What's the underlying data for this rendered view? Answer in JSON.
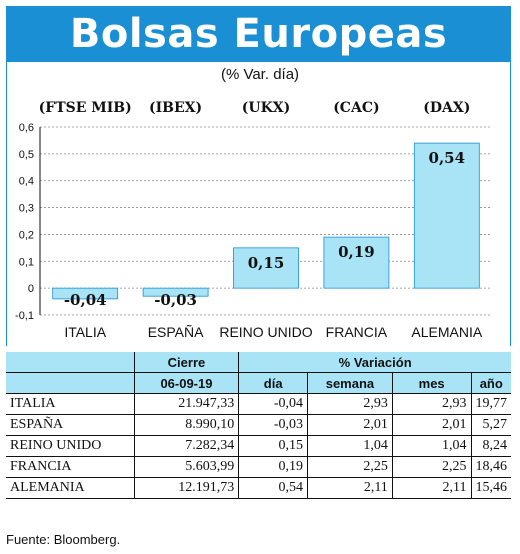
{
  "header": {
    "title": "Bolsas Europeas",
    "subtitle": "(% Var. día)"
  },
  "chart_data": {
    "type": "bar",
    "indices": [
      "(FTSE MIB)",
      "(IBEX)",
      "(UKX)",
      "(CAC)",
      "(DAX)"
    ],
    "categories": [
      "ITALIA",
      "ESPAÑA",
      "REINO UNIDO",
      "FRANCIA",
      "ALEMANIA"
    ],
    "values": [
      -0.04,
      -0.03,
      0.15,
      0.19,
      0.54
    ],
    "value_labels": [
      "-0,04",
      "-0,03",
      "0,15",
      "0,19",
      "0,54"
    ],
    "yticks": [
      0.6,
      0.5,
      0.4,
      0.3,
      0.2,
      0.1,
      0,
      -0.1
    ],
    "ytick_labels": [
      "0,6",
      "0,5",
      "0,4",
      "0,3",
      "0,2",
      "0,1",
      "0",
      "-0,1"
    ],
    "ylim": [
      -0.1,
      0.6
    ],
    "grid": true,
    "bar_color": "#a8e4f6",
    "bar_stroke": "#1a8fd4"
  },
  "table": {
    "group_headers": {
      "close": "Cierre",
      "variation": "% Variación"
    },
    "sub_headers": {
      "date": "06-09-19",
      "day": "día",
      "week": "semana",
      "month": "mes",
      "year": "año"
    },
    "rows": [
      {
        "name": "ITALIA",
        "close": "21.947,33",
        "day": "-0,04",
        "week": "2,93",
        "month": "2,93",
        "year": "19,77"
      },
      {
        "name": "ESPAÑA",
        "close": "8.990,10",
        "day": "-0,03",
        "week": "2,01",
        "month": "2,01",
        "year": "5,27"
      },
      {
        "name": "REINO UNIDO",
        "close": "7.282,34",
        "day": "0,15",
        "week": "1,04",
        "month": "1,04",
        "year": "8,24"
      },
      {
        "name": "FRANCIA",
        "close": "5.603,99",
        "day": "0,19",
        "week": "2,25",
        "month": "2,25",
        "year": "18,46"
      },
      {
        "name": "ALEMANIA",
        "close": "12.191,73",
        "day": "0,54",
        "week": "2,11",
        "month": "2,11",
        "year": "15,46"
      }
    ]
  },
  "source": "Fuente: Bloomberg.",
  "colors": {
    "banner": "#1a8fd4",
    "accent_light": "#a8e4f6"
  }
}
